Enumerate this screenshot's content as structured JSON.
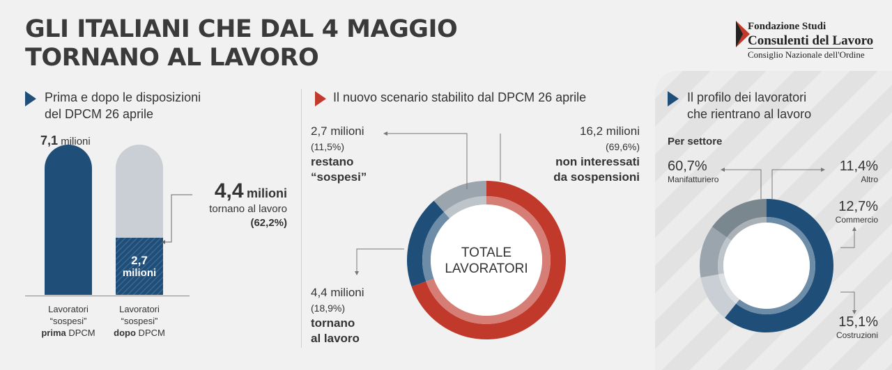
{
  "title": {
    "line1": "GLI ITALIANI CHE DAL 4 MAGGIO",
    "line2": "TORNANO AL LAVORO"
  },
  "logo": {
    "line1": "Fondazione Studi",
    "line2": "Consulenti del Lavoro",
    "line3": "Consiglio Nazionale dell'Ordine"
  },
  "colors": {
    "navy": "#1f4e79",
    "red": "#c0392b",
    "grey": "#9aa5ad",
    "light_grey": "#c9cfd4"
  },
  "section1": {
    "heading_line1": "Prima e dopo le disposizioni",
    "heading_line2": "del DPCM 26 aprile",
    "bar1_value_num": "7,1",
    "bar1_value_unit": "milioni",
    "bar2_value_num": "2,7",
    "bar2_value_unit": "milioni",
    "callout_num": "4,4",
    "callout_unit": "milioni",
    "callout_line2": "tornano al lavoro",
    "callout_line3": "(62,2%)",
    "label1_line1": "Lavoratori",
    "label1_line2": "“sospesi”",
    "label1_bold": "prima",
    "label1_rest": " DPCM",
    "label2_line1": "Lavoratori",
    "label2_line2": "“sospesi”",
    "label2_bold": "dopo",
    "label2_rest": " DPCM"
  },
  "section2": {
    "heading": "Il nuovo scenario stabilito dal DPCM 26 aprile",
    "center_line1": "TOTALE",
    "center_line2": "LAVORATORI",
    "a_value": "2,7 milioni",
    "a_pct": "(11,5%)",
    "a_label1": "restano",
    "a_label2": "“sospesi”",
    "b_value": "16,2 milioni",
    "b_pct": "(69,6%)",
    "b_label1": "non interessati",
    "b_label2": "da sospensioni",
    "c_value": "4,4 milioni",
    "c_pct": "(18,9%)",
    "c_label1": "tornano",
    "c_label2": "al lavoro"
  },
  "section3": {
    "heading_line1": "Il profilo dei lavoratori",
    "heading_line2": "che rientrano al lavoro",
    "subheading": "Per settore",
    "s1_pct": "60,7%",
    "s1_name": "Manifatturiero",
    "s2_pct": "11,4%",
    "s2_name": "Altro",
    "s3_pct": "12,7%",
    "s3_name": "Commercio",
    "s4_pct": "15,1%",
    "s4_name": "Costruzioni"
  },
  "chart_data": [
    {
      "type": "bar",
      "categories": [
        "Lavoratori “sospesi” prima DPCM",
        "Lavoratori “sospesi” dopo DPCM"
      ],
      "values": [
        7.1,
        2.7
      ],
      "highlight": {
        "value": 4.4,
        "label": "tornano al lavoro",
        "percent": 62.2
      },
      "unit": "milioni"
    },
    {
      "type": "pie",
      "labels": [
        "non interessati da sospensioni",
        "tornano al lavoro",
        "restano “sospesi”"
      ],
      "values": [
        69.6,
        18.9,
        11.5
      ],
      "amounts": [
        16.2,
        4.4,
        2.7
      ],
      "colors": [
        "#c0392b",
        "#1f4e79",
        "#9aa5ad"
      ],
      "unit": "milioni"
    },
    {
      "type": "pie",
      "labels": [
        "Manifatturiero",
        "Altro",
        "Commercio",
        "Costruzioni"
      ],
      "values": [
        60.7,
        11.4,
        12.7,
        15.1
      ],
      "colors": [
        "#1f4e79",
        "#c9cfd4",
        "#9aa5ad",
        "#7b878f"
      ]
    }
  ]
}
